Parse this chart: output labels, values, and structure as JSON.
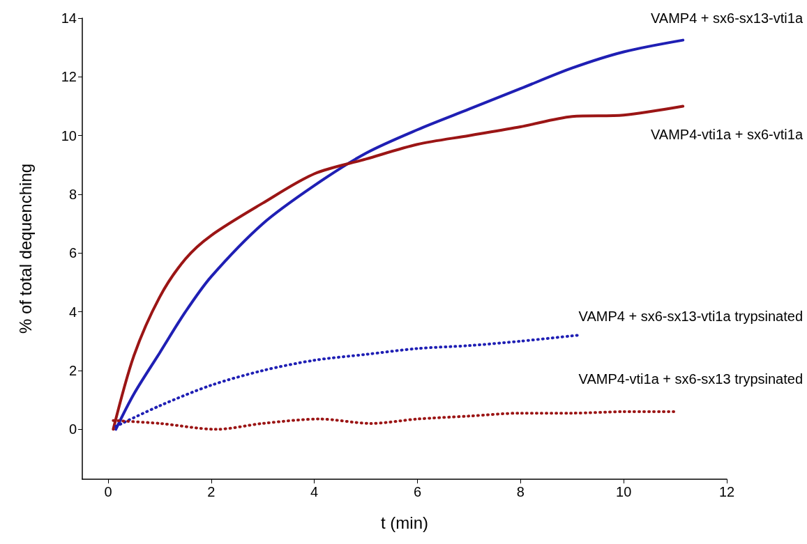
{
  "chart_data": {
    "type": "line",
    "xlabel": "t (min)",
    "ylabel": "% of total dequenching",
    "xlim": [
      -0.5,
      12
    ],
    "xticks": [
      0,
      2,
      4,
      6,
      8,
      10,
      12
    ],
    "ylim": [
      -1.7,
      14
    ],
    "yticks": [
      0,
      2,
      4,
      6,
      8,
      10,
      12,
      14
    ],
    "grid": false,
    "legend": false,
    "marker": "none",
    "series": [
      {
        "name": "VAMP4 + sx6-sx13-vti1a",
        "color": "#1f1fb4",
        "line_style": "solid",
        "x": [
          0.15,
          0.5,
          1,
          1.5,
          2,
          3,
          4,
          5,
          6,
          7,
          8,
          9,
          10,
          11.15
        ],
        "values": [
          0,
          1.2,
          2.6,
          4,
          5.2,
          7,
          8.3,
          9.4,
          10.2,
          10.9,
          11.6,
          12.3,
          12.85,
          13.25
        ]
      },
      {
        "name": "VAMP4-vti1a + sx6-vti1a",
        "color": "#9b1515",
        "line_style": "solid",
        "x": [
          0.1,
          0.5,
          1,
          1.5,
          2,
          3,
          4,
          5,
          6,
          7,
          8,
          9,
          10,
          11.15
        ],
        "values": [
          0,
          2.5,
          4.5,
          5.8,
          6.6,
          7.7,
          8.7,
          9.2,
          9.7,
          10,
          10.3,
          10.65,
          10.7,
          11
        ]
      },
      {
        "name": "VAMP4 + sx6-sx13-vti1a trypsinated",
        "color": "#1f1fb4",
        "line_style": "dotted",
        "x": [
          0.15,
          1,
          2,
          3,
          4,
          5,
          6,
          7,
          8,
          9.1
        ],
        "values": [
          0.1,
          0.8,
          1.5,
          2,
          2.35,
          2.55,
          2.75,
          2.85,
          3,
          3.2
        ]
      },
      {
        "name": "VAMP4-vti1a + sx6-sx13 trypsinated",
        "color": "#9b1515",
        "line_style": "dotted",
        "x": [
          0.1,
          1,
          2.1,
          3,
          4.1,
          5.1,
          6,
          7,
          8,
          9,
          10,
          11
        ],
        "values": [
          0.3,
          0.2,
          0,
          0.2,
          0.35,
          0.2,
          0.35,
          0.45,
          0.55,
          0.55,
          0.6,
          0.6
        ]
      }
    ]
  }
}
